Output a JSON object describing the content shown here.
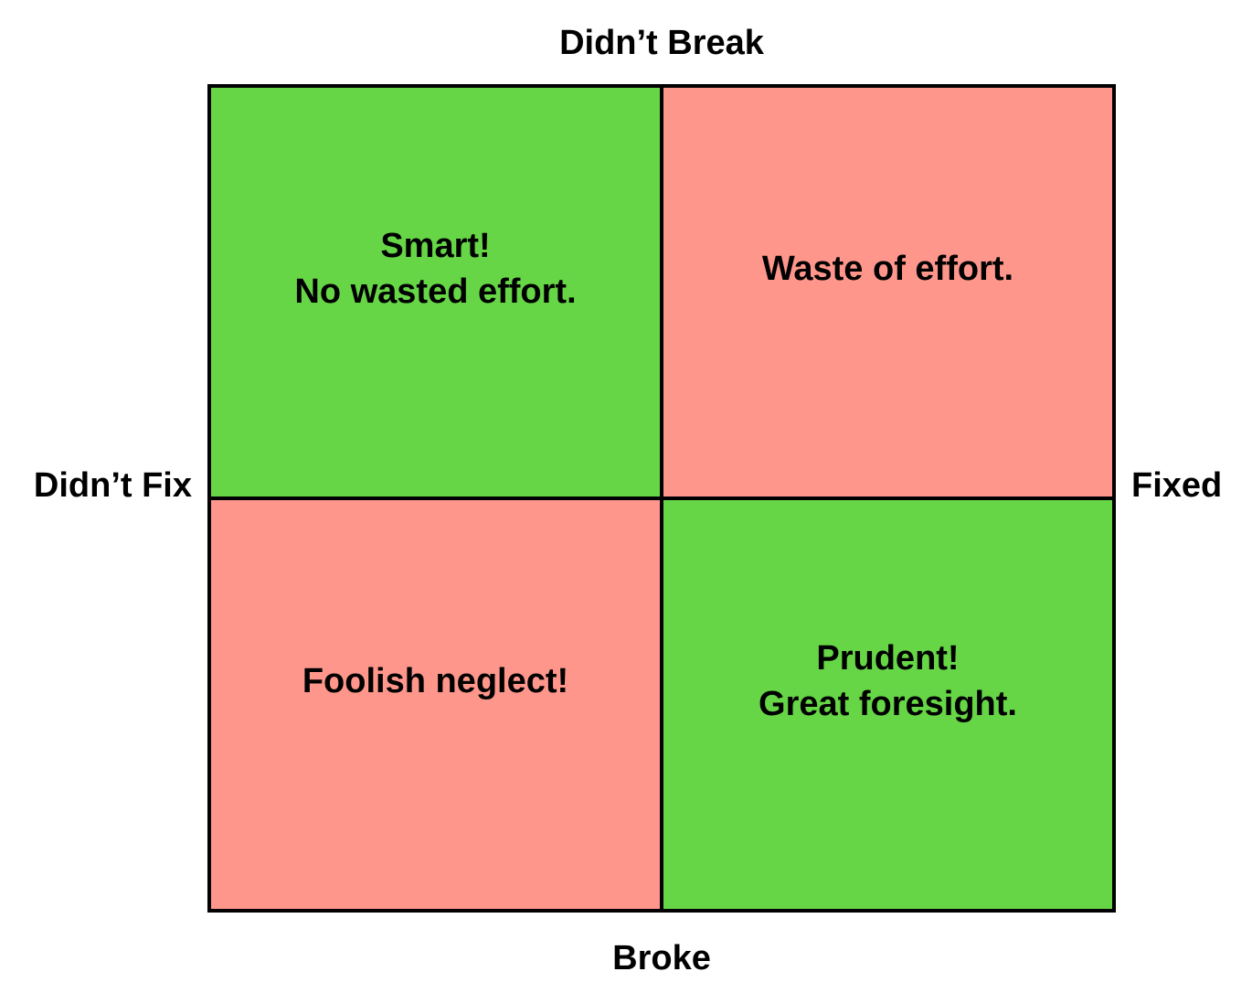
{
  "axes": {
    "top": "Didn’t Break",
    "bottom": "Broke",
    "left": "Didn’t Fix",
    "right": "Fixed"
  },
  "colors": {
    "good": "#66d646",
    "bad": "#ff968c"
  },
  "cells": [
    {
      "lines": [
        "Smart!",
        "No wasted effort."
      ],
      "tone": "good"
    },
    {
      "lines": [
        "Waste of effort."
      ],
      "tone": "bad"
    },
    {
      "lines": [
        "Foolish neglect!"
      ],
      "tone": "bad"
    },
    {
      "lines": [
        "Prudent!",
        "Great foresight."
      ],
      "tone": "good"
    }
  ]
}
